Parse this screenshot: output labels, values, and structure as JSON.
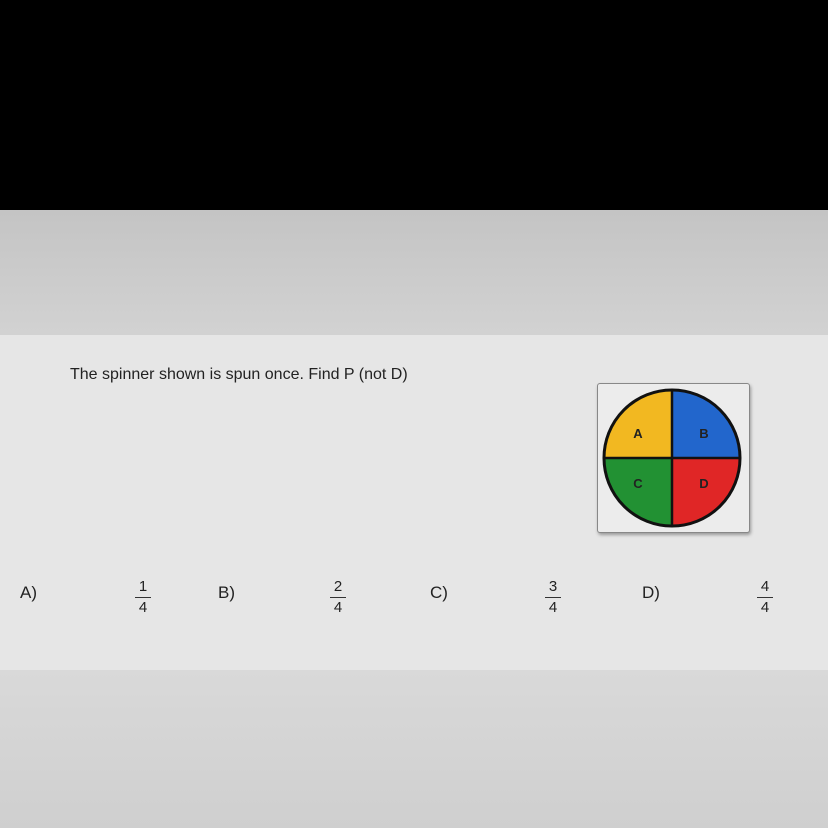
{
  "question": "The spinner shown is spun once. Find P (not D)",
  "spinner": {
    "sections": [
      {
        "label": "A",
        "color": "#f2b821"
      },
      {
        "label": "B",
        "color": "#2266cc"
      },
      {
        "label": "C",
        "color": "#229133"
      },
      {
        "label": "D",
        "color": "#e02626"
      }
    ]
  },
  "choices": [
    {
      "label": "A)",
      "numerator": "1",
      "denominator": "4"
    },
    {
      "label": "B)",
      "numerator": "2",
      "denominator": "4"
    },
    {
      "label": "C)",
      "numerator": "3",
      "denominator": "4"
    },
    {
      "label": "D)",
      "numerator": "4",
      "denominator": "4"
    }
  ]
}
